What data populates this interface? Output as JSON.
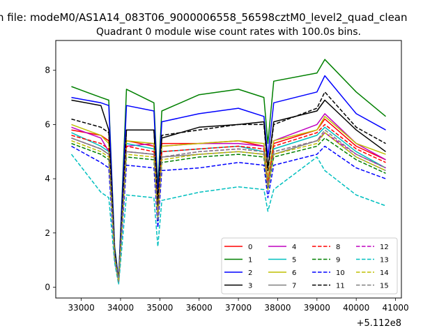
{
  "chart_data": {
    "type": "line",
    "suptitle": "n file: modeM0/AS1A14_083T06_9000006558_56598cztM0_level2_quad_clean",
    "title": "Quadrant 0 module wise count rates with 100.0s bins.",
    "xlabel": "",
    "ylabel": "",
    "x_offset_label": "+5.112e8",
    "xlim": [
      32350,
      41150
    ],
    "ylim": [
      -0.4,
      9.1
    ],
    "xticks": [
      33000,
      34000,
      35000,
      36000,
      37000,
      38000,
      39000,
      40000,
      41000
    ],
    "xtick_labels": [
      "33000",
      "34000",
      "35000",
      "36000",
      "37000",
      "38000",
      "39000",
      "40000",
      "41000"
    ],
    "yticks": [
      0,
      2,
      4,
      6,
      8
    ],
    "ytick_labels": [
      "0",
      "2",
      "4",
      "6",
      "8"
    ],
    "grid": false,
    "legend_position": "lower-right",
    "legend_columns": 4,
    "x": [
      32750,
      33500,
      33700,
      33850,
      33950,
      34150,
      34850,
      34950,
      35050,
      36000,
      37000,
      37650,
      37750,
      37900,
      39000,
      39200,
      40000,
      40750
    ],
    "series": [
      {
        "name": "0",
        "color": "#ff0000",
        "dashed": false,
        "values": [
          5.8,
          5.6,
          5.4,
          1.2,
          0.2,
          5.4,
          5.2,
          2.6,
          5.3,
          5.3,
          5.4,
          5.2,
          3.9,
          5.3,
          5.8,
          6.2,
          5.2,
          4.7
        ]
      },
      {
        "name": "1",
        "color": "#008000",
        "dashed": false,
        "values": [
          7.4,
          7.0,
          6.9,
          1.5,
          0.3,
          7.3,
          6.8,
          3.7,
          6.5,
          7.1,
          7.3,
          7.0,
          5.3,
          7.6,
          7.9,
          8.4,
          7.2,
          6.3
        ]
      },
      {
        "name": "2",
        "color": "#0000ff",
        "dashed": false,
        "values": [
          7.0,
          6.8,
          6.7,
          1.4,
          0.3,
          6.7,
          6.5,
          3.4,
          6.1,
          6.4,
          6.6,
          6.3,
          4.8,
          6.8,
          7.2,
          7.8,
          6.4,
          5.8
        ]
      },
      {
        "name": "3",
        "color": "#000000",
        "dashed": false,
        "values": [
          6.9,
          6.7,
          5.8,
          1.3,
          0.2,
          5.8,
          5.8,
          3.1,
          5.5,
          5.9,
          6.0,
          6.1,
          4.4,
          6.1,
          6.5,
          6.9,
          5.8,
          5.0
        ]
      },
      {
        "name": "4",
        "color": "#bf00bf",
        "dashed": false,
        "values": [
          5.9,
          5.5,
          5.0,
          1.1,
          0.2,
          5.2,
          5.3,
          2.9,
          5.2,
          5.3,
          5.3,
          5.2,
          4.0,
          5.4,
          6.0,
          6.4,
          5.3,
          4.7
        ]
      },
      {
        "name": "5",
        "color": "#00bfbf",
        "dashed": false,
        "values": [
          5.7,
          5.2,
          5.0,
          1.1,
          0.2,
          5.3,
          5.1,
          2.7,
          5.0,
          5.1,
          5.2,
          5.0,
          3.7,
          5.1,
          5.6,
          5.9,
          5.0,
          4.4
        ]
      },
      {
        "name": "6",
        "color": "#bfbf00",
        "dashed": false,
        "values": [
          6.0,
          5.6,
          5.3,
          1.2,
          0.2,
          5.4,
          5.3,
          2.8,
          5.2,
          5.3,
          5.4,
          5.3,
          4.0,
          5.4,
          5.8,
          6.3,
          5.3,
          4.9
        ]
      },
      {
        "name": "7",
        "color": "#808080",
        "dashed": false,
        "values": [
          5.5,
          5.1,
          4.9,
          1.1,
          0.2,
          5.0,
          4.9,
          2.5,
          4.8,
          4.9,
          5.0,
          4.9,
          3.6,
          4.9,
          5.4,
          5.7,
          4.8,
          4.3
        ]
      },
      {
        "name": "8",
        "color": "#ff0000",
        "dashed": true,
        "values": [
          5.6,
          5.3,
          5.1,
          1.1,
          0.2,
          5.2,
          5.0,
          2.6,
          5.0,
          5.1,
          5.2,
          5.1,
          3.8,
          5.2,
          5.7,
          6.0,
          5.1,
          4.6
        ]
      },
      {
        "name": "9",
        "color": "#008000",
        "dashed": true,
        "values": [
          5.3,
          4.9,
          4.7,
          1.0,
          0.2,
          4.8,
          4.7,
          2.4,
          4.6,
          4.8,
          4.9,
          4.8,
          3.6,
          4.8,
          5.2,
          5.5,
          4.7,
          4.2
        ]
      },
      {
        "name": "10",
        "color": "#0000ff",
        "dashed": true,
        "values": [
          5.2,
          4.6,
          4.4,
          1.0,
          0.2,
          4.5,
          4.4,
          2.2,
          4.3,
          4.4,
          4.6,
          4.5,
          3.3,
          4.5,
          4.9,
          5.2,
          4.4,
          4.0
        ]
      },
      {
        "name": "11",
        "color": "#000000",
        "dashed": true,
        "values": [
          6.2,
          5.9,
          5.7,
          1.3,
          0.2,
          5.8,
          5.8,
          3.0,
          5.6,
          5.8,
          6.0,
          6.0,
          4.3,
          6.0,
          6.6,
          7.2,
          5.9,
          5.3
        ]
      },
      {
        "name": "12",
        "color": "#bf00bf",
        "dashed": true,
        "values": [
          5.5,
          5.1,
          4.9,
          1.1,
          0.2,
          5.0,
          4.9,
          2.5,
          4.8,
          5.0,
          5.1,
          5.0,
          3.7,
          5.0,
          5.4,
          5.7,
          4.9,
          4.4
        ]
      },
      {
        "name": "13",
        "color": "#00bfbf",
        "dashed": true,
        "values": [
          4.9,
          3.5,
          3.3,
          0.9,
          0.1,
          3.4,
          3.3,
          1.5,
          3.2,
          3.5,
          3.7,
          3.6,
          2.8,
          3.6,
          4.8,
          4.3,
          3.4,
          3.0
        ]
      },
      {
        "name": "14",
        "color": "#bfbf00",
        "dashed": true,
        "values": [
          5.4,
          5.0,
          4.8,
          1.1,
          0.2,
          4.9,
          4.8,
          2.5,
          4.7,
          4.9,
          5.0,
          4.9,
          3.6,
          4.9,
          5.3,
          5.7,
          4.8,
          4.3
        ]
      },
      {
        "name": "15",
        "color": "#808080",
        "dashed": true,
        "values": [
          5.5,
          5.1,
          4.9,
          1.1,
          0.2,
          5.0,
          4.9,
          2.5,
          4.8,
          5.0,
          5.1,
          5.0,
          3.7,
          5.0,
          5.4,
          5.8,
          4.9,
          4.4
        ]
      }
    ]
  }
}
